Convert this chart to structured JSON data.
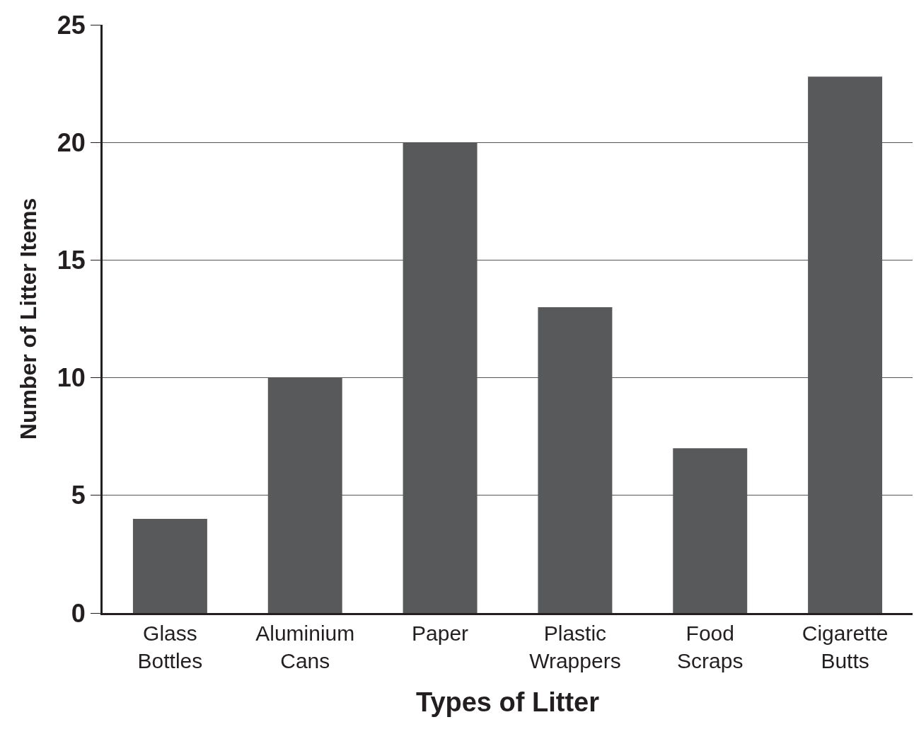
{
  "chart_data": {
    "type": "bar",
    "xlabel": "Types of Litter",
    "ylabel": "Number of Litter Items",
    "categories": [
      "Glass Bottles",
      "Aluminium Cans",
      "Paper",
      "Plastic Wrappers",
      "Food Scraps",
      "Cigarette Butts"
    ],
    "values": [
      4,
      10,
      20,
      13,
      7,
      22.8
    ],
    "color": "#58595b",
    "ylim": [
      0,
      25
    ],
    "yticks": [
      0,
      5,
      10,
      15,
      20,
      25
    ],
    "grid": "y",
    "legend": false
  }
}
